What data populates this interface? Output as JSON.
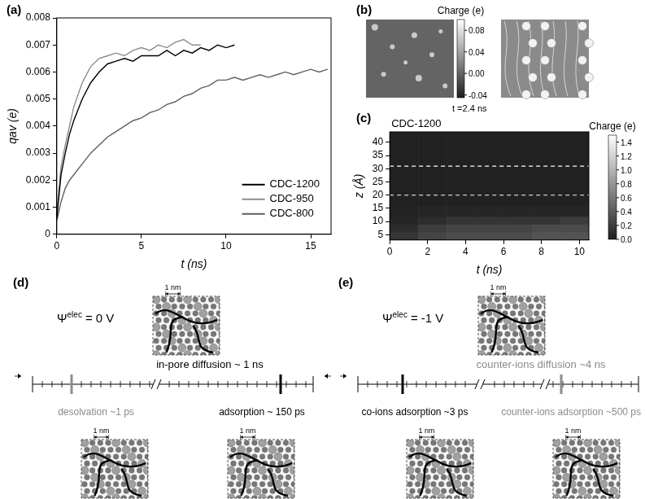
{
  "chart_data": [
    {
      "panel_label": "(a)",
      "type": "line",
      "x_label": "t (ns)",
      "y_label": "qav (e)",
      "x": [
        0,
        0.25,
        0.5,
        0.75,
        1,
        1.5,
        2,
        2.5,
        3,
        3.5,
        4,
        4.5,
        5,
        5.5,
        6,
        6.5,
        7,
        7.5,
        8,
        8.5,
        9,
        9.5,
        10,
        10.5,
        11,
        11.5,
        12,
        12.5,
        13,
        13.5,
        14,
        14.5,
        15,
        15.5,
        16
      ],
      "series": [
        {
          "name": "CDC-1200",
          "color": "#000000",
          "values": [
            0.0006,
            0.0022,
            0.003,
            0.0037,
            0.0042,
            0.005,
            0.0056,
            0.006,
            0.0063,
            0.0064,
            0.0065,
            0.0064,
            0.0066,
            0.0066,
            0.0066,
            0.0068,
            0.0066,
            0.0068,
            0.0067,
            0.0069,
            0.0068,
            0.007,
            0.0069,
            0.007,
            null,
            null,
            null,
            null,
            null,
            null,
            null,
            null,
            null,
            null,
            null
          ]
        },
        {
          "name": "CDC-950",
          "color": "#8c8c8c",
          "values": [
            0.0008,
            0.0025,
            0.0033,
            0.004,
            0.0047,
            0.0056,
            0.0062,
            0.0065,
            0.0066,
            0.0067,
            0.0066,
            0.0068,
            0.0069,
            0.0068,
            0.007,
            0.0069,
            0.0071,
            0.0072,
            0.007,
            0.007,
            null,
            null,
            null,
            null,
            null,
            null,
            null,
            null,
            null,
            null,
            null,
            null,
            null,
            null,
            null
          ]
        },
        {
          "name": "CDC-800",
          "color": "#5f5f5f",
          "values": [
            0.0005,
            0.0012,
            0.0017,
            0.002,
            0.0022,
            0.0026,
            0.003,
            0.0033,
            0.0036,
            0.0038,
            0.004,
            0.0042,
            0.0043,
            0.0045,
            0.0046,
            0.0048,
            0.0049,
            0.0051,
            0.0052,
            0.0054,
            0.0055,
            0.0057,
            0.0057,
            0.0058,
            0.0057,
            0.0058,
            0.0059,
            0.0058,
            0.0059,
            0.006,
            0.0059,
            0.006,
            0.0061,
            0.006,
            0.0061
          ]
        }
      ],
      "xlim": [
        0,
        16.2
      ],
      "xticks": [
        0,
        5,
        10,
        15
      ],
      "ylim": [
        0,
        0.008
      ],
      "yticks": [
        0,
        0.001,
        0.002,
        0.003,
        0.004,
        0.005,
        0.006,
        0.007,
        0.008
      ],
      "grid": false,
      "legend": "lower right"
    },
    {
      "panel_label": "(c)",
      "type": "heatmap",
      "title": "CDC-1200",
      "x_label": "t (ns)",
      "y_label": "z (Å)",
      "x_bins": [
        0,
        1.5,
        3,
        4.5,
        6,
        7.5,
        9,
        10.5
      ],
      "y_bins": [
        3,
        6,
        9,
        12,
        16,
        44
      ],
      "cells": [
        [
          0.15,
          0.25,
          0.3,
          0.3,
          0.3,
          0.35,
          0.35
        ],
        [
          0.1,
          0.2,
          0.25,
          0.25,
          0.25,
          0.3,
          0.3
        ],
        [
          0.05,
          0.1,
          0.15,
          0.15,
          0.15,
          0.15,
          0.2
        ],
        [
          0.03,
          0.05,
          0.05,
          0.05,
          0.05,
          0.05,
          0.05
        ],
        [
          0.02,
          0.02,
          0.02,
          0.02,
          0.02,
          0.02,
          0.02
        ]
      ],
      "dashed_lines": [
        20,
        31
      ],
      "xlim": [
        0,
        10.5
      ],
      "xticks": [
        0,
        2,
        4,
        6,
        8,
        10
      ],
      "ylim": [
        3,
        44
      ],
      "yticks": [
        5,
        10,
        15,
        20,
        25,
        30,
        35,
        40
      ],
      "colorbar_title": "Charge (e)",
      "colorbar_range": [
        0,
        1.5
      ],
      "colorbar_ticks": [
        {
          "value": 0,
          "label": "0.0"
        },
        0.2,
        0.4,
        0.6,
        0.8,
        {
          "value": 1,
          "label": "1.0"
        },
        1.2,
        1.4
      ]
    }
  ],
  "panel_b": {
    "panel_label": "(b)",
    "colorbar_title": "Charge (e)",
    "colorbar_range": [
      -0.045,
      0.1
    ],
    "colorbar_ticks": [
      0.08,
      0.04,
      {
        "value": 0,
        "label": "0.00"
      },
      -0.04
    ],
    "caption": "t =2.4 ns"
  },
  "panel_d": {
    "panel_label": "(d)",
    "potential": {
      "symbol": "Ψ",
      "superscript": "elec",
      "value": "= 0 V"
    },
    "above": [
      "in-pore diffusion ~ 1 ns"
    ],
    "below": [
      "desolvation ~1 ps",
      "adsorption ~ 150 ps"
    ],
    "scale_bars": [
      "1 nm",
      "1 nm",
      "1 nm"
    ]
  },
  "panel_e": {
    "panel_label": "(e)",
    "potential": {
      "symbol": "Ψ",
      "superscript": "elec",
      "value": "= -1 V"
    },
    "above": [
      "counter-ions diffusion ~4 ns"
    ],
    "below": [
      "co-ions adsorption ~3 ps",
      "counter-ions adsorption ~500 ps"
    ],
    "scale_bars": [
      "1 nm",
      "1 nm",
      "1 nm"
    ]
  }
}
